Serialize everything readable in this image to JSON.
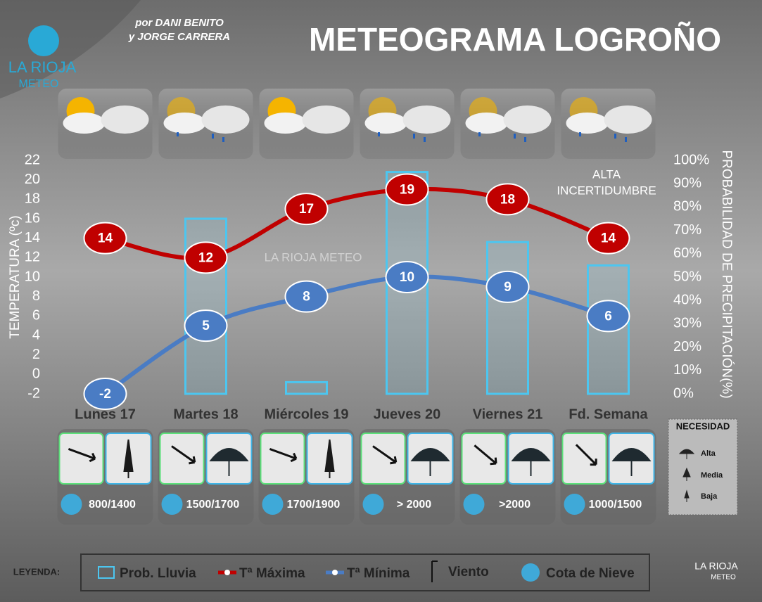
{
  "header": {
    "title": "METEOGRAMA LOGROÑO",
    "credit_1": "por DANI BENITO",
    "credit_2": "y JORGE CARRERA",
    "logo_1": "LA RIOJA",
    "logo_2": "METEO",
    "watermark": "LA RIOJA METEO"
  },
  "chart_data": {
    "type": "combo",
    "categories": [
      "Lunes 17",
      "Martes 18",
      "Miércoles 19",
      "Jueves 20",
      "Viernes 21",
      "Fd. Semana"
    ],
    "ylabel": "TEMPERATURA (ºc)",
    "y2label": "PROBABILIDAD DE PRECIPITACIÓN(%)",
    "ylim": [
      -2,
      22
    ],
    "yticks": [
      -2,
      0,
      2,
      4,
      6,
      8,
      10,
      12,
      14,
      16,
      18,
      20,
      22
    ],
    "y2lim": [
      0,
      100
    ],
    "y2ticks": [
      {
        "value": 0,
        "label": "0%"
      },
      {
        "value": 10,
        "label": "10%"
      },
      {
        "value": 20,
        "label": "20%"
      },
      {
        "value": 30,
        "label": "30%"
      },
      {
        "value": 40,
        "label": "40%"
      },
      {
        "value": 50,
        "label": "50%"
      },
      {
        "value": 60,
        "label": "60%"
      },
      {
        "value": 70,
        "label": "70%"
      },
      {
        "value": 80,
        "label": "80%"
      },
      {
        "value": 90,
        "label": "90%"
      },
      {
        "value": 100,
        "label": "100%"
      }
    ],
    "annotation": [
      "ALTA",
      "INCERTIDUMBRE"
    ],
    "series": [
      {
        "name": "Prob. Lluvia",
        "kind": "bar",
        "axis": "y2",
        "color": "#4cc6f0",
        "values": [
          0,
          75,
          5,
          95,
          65,
          55
        ]
      },
      {
        "name": "Tª Máxima",
        "kind": "line",
        "color": "#c00000",
        "values": [
          14,
          12,
          17,
          19,
          18,
          14
        ]
      },
      {
        "name": "Tª Mínima",
        "kind": "line",
        "color": "#4a7cc4",
        "values": [
          -2,
          5,
          8,
          10,
          9,
          6
        ]
      }
    ]
  },
  "days": [
    {
      "snow": "800/1400"
    },
    {
      "snow": "1500/1700"
    },
    {
      "snow": "1700/1900"
    },
    {
      "snow": "> 2000"
    },
    {
      "snow": ">2000"
    },
    {
      "snow": "1000/1500"
    }
  ],
  "need_legend": {
    "title": "NECESIDAD",
    "items": [
      "Alta",
      "Media",
      "Baja"
    ]
  },
  "legend": {
    "title": "LEYENDA:",
    "wind": "Viento",
    "snow": "Cota de Nieve"
  },
  "footer": {
    "logo_1": "LA RIOJA",
    "logo_2": "METEO"
  }
}
